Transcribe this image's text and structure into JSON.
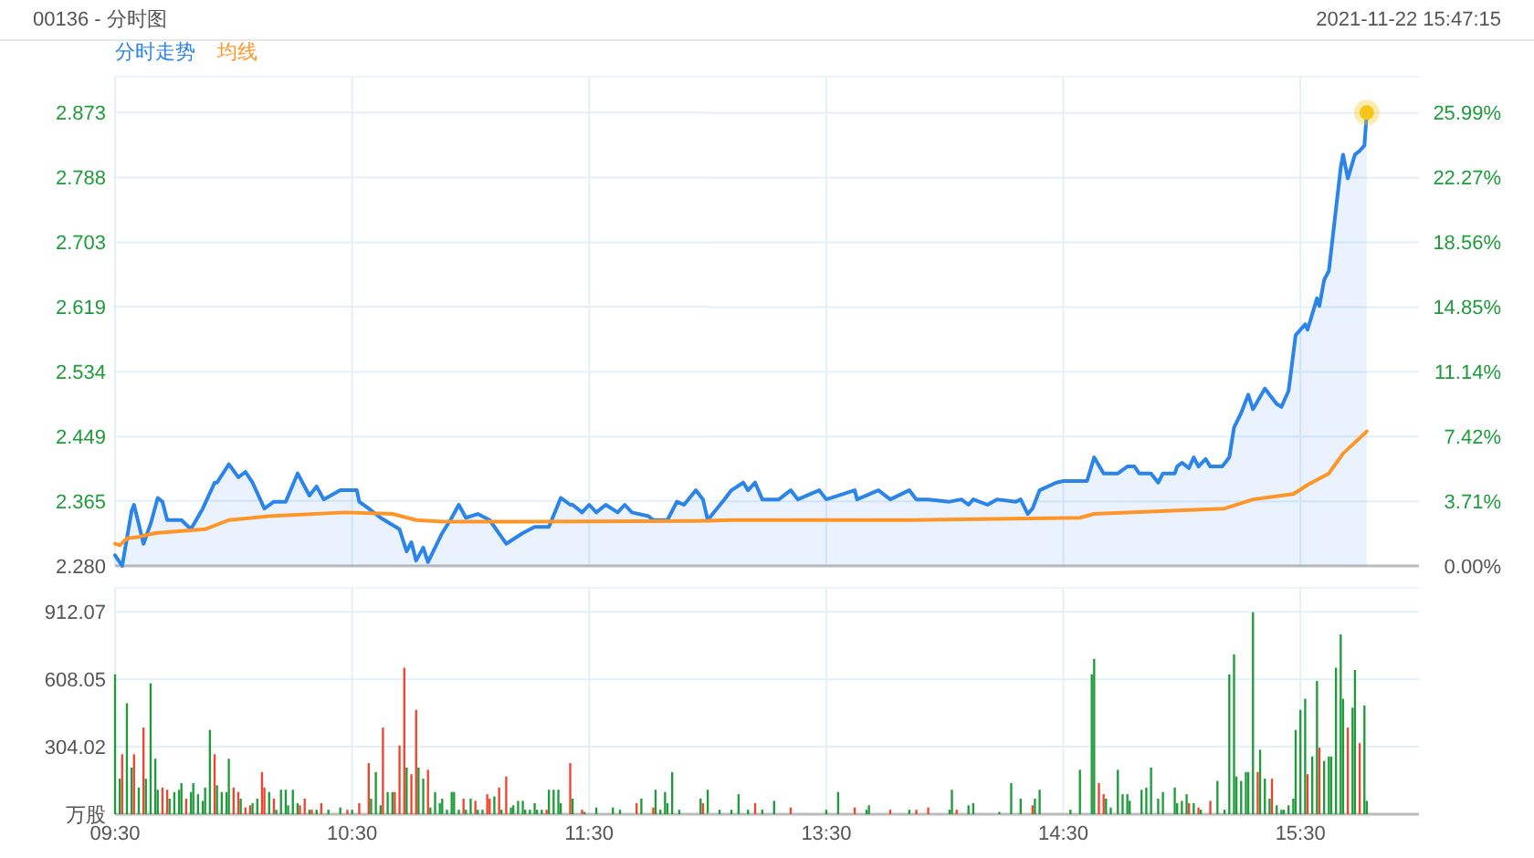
{
  "chart_data": [
    {
      "type": "line",
      "title": "00136 - 分时图",
      "legend": "top left",
      "grid": true,
      "tick_labels": "y",
      "xlim": [
        9.5,
        12
      ],
      "xticks": [
        {
          "value": 9.5,
          "label": null
        },
        {
          "value": 10.5,
          "label": null
        },
        {
          "value": 11.5,
          "label": null
        }
      ],
      "ylim": [
        2.28,
        2.92
      ],
      "yticks": [
        {
          "value": 2.28,
          "label": "2.280"
        },
        2.365,
        2.449,
        2.534,
        2.619,
        2.703,
        2.788,
        2.873
      ],
      "series": [
        {
          "name": "分时走势",
          "type": "area",
          "color": "#2b84ea",
          "x": [
            9.5,
            9.53,
            9.57,
            9.58,
            9.6,
            9.62,
            9.65,
            9.68,
            9.7,
            9.72,
            9.78,
            9.82,
            9.87,
            9.92,
            9.93,
            9.98,
            10.02,
            10.05,
            10.08,
            10.13,
            10.17,
            10.22,
            10.27,
            10.32,
            10.35,
            10.38,
            10.45,
            10.52,
            10.53,
            10.57,
            10.62,
            10.7,
            10.73,
            10.75,
            10.77,
            10.8,
            10.82,
            10.85,
            10.88,
            10.92,
            10.95,
            10.98,
            11.03,
            11.08,
            11.15,
            11.22,
            11.27,
            11.33,
            11.38,
            11.42,
            11.43,
            11.47,
            11.5,
            11.53,
            11.57,
            11.62,
            11.65,
            11.68,
            11.75,
            11.77,
            11.83,
            11.87,
            11.9,
            11.95,
            11.98,
            12
          ],
          "values": [
            2.294,
            2.28,
            2.352,
            2.36,
            2.335,
            2.309,
            2.335,
            2.369,
            2.364,
            2.34,
            2.34,
            2.328,
            2.355,
            2.389,
            2.389,
            2.413,
            2.396,
            2.403,
            2.389,
            2.355,
            2.364,
            2.364,
            2.401,
            2.372,
            2.384,
            2.367,
            2.379,
            2.379,
            2.364,
            2.355,
            2.343,
            2.328,
            2.299,
            2.311,
            2.287,
            2.304,
            2.285,
            2.304,
            2.323,
            2.343,
            2.36,
            2.343,
            2.348,
            2.34,
            2.309,
            2.323,
            2.331,
            2.331,
            2.369,
            2.36,
            2.36,
            2.35,
            2.36,
            2.35,
            2.36,
            2.35,
            2.36,
            2.35,
            2.345,
            2.34,
            2.34,
            2.364,
            2.36,
            2.379,
            2.367,
            2.34
          ]
        },
        {
          "name": "均线",
          "color": "#ff9526",
          "x": [
            9.5,
            9.52,
            9.55,
            9.6,
            9.67,
            9.88,
            9.98,
            10.15,
            10.47,
            10.67,
            10.77,
            10.88,
            11.23,
            12
          ],
          "values": [
            2.309,
            2.307,
            2.316,
            2.318,
            2.323,
            2.328,
            2.34,
            2.345,
            2.35,
            2.348,
            2.34,
            2.338,
            2.338,
            2.339
          ]
        }
      ]
    },
    {
      "type": "line",
      "annotations": [
        "2021-11-22 15:47:15"
      ],
      "grid": true,
      "tick_labels": "y",
      "xlim": [
        13,
        16
      ],
      "xticks": [
        {
          "value": 13.5,
          "label": null
        },
        {
          "value": 14.5,
          "label": null
        },
        {
          "value": 15.5,
          "label": null
        }
      ],
      "ylim": [
        2.28,
        2.92
      ],
      "y2lim": [
        0,
        28.07
      ],
      "y2ticks": [
        {
          "value": 0,
          "label": "0.00%"
        },
        {
          "value": 3.71,
          "label": "3.71%"
        },
        {
          "value": 7.42,
          "label": "7.42%"
        },
        {
          "value": 11.14,
          "label": "11.14%"
        },
        {
          "value": 14.85,
          "label": "14.85%"
        },
        {
          "value": 18.56,
          "label": "18.56%"
        },
        {
          "value": 22.27,
          "label": "22.27%"
        },
        {
          "value": 25.99,
          "label": "25.99%"
        }
      ],
      "series": [
        {
          "type": "area",
          "color": "#2b84ea",
          "x": [
            13,
            13.07,
            13.1,
            13.15,
            13.17,
            13.2,
            13.23,
            13.3,
            13.35,
            13.38,
            13.47,
            13.5,
            13.62,
            13.63,
            13.72,
            13.77,
            13.85,
            13.88,
            13.93,
            14.02,
            14.07,
            14.1,
            14.12,
            14.18,
            14.22,
            14.3,
            14.32,
            14.35,
            14.37,
            14.4,
            14.47,
            14.5,
            14.6,
            14.63,
            14.67,
            14.73,
            14.77,
            14.8,
            14.82,
            14.87,
            14.9,
            14.92,
            14.97,
            14.98,
            15,
            15.03,
            15.05,
            15.07,
            15.1,
            15.12,
            15.17,
            15.2,
            15.22,
            15.25,
            15.28,
            15.3,
            15.35,
            15.4,
            15.42,
            15.45,
            15.48,
            15.52,
            15.53,
            15.57,
            15.58,
            15.6,
            15.62,
            15.67,
            15.68,
            15.7,
            15.73,
            15.75,
            15.77,
            15.78
          ],
          "values": [
            2.34,
            2.367,
            2.379,
            2.389,
            2.379,
            2.389,
            2.367,
            2.367,
            2.379,
            2.367,
            2.379,
            2.367,
            2.379,
            2.367,
            2.379,
            2.367,
            2.379,
            2.367,
            2.367,
            2.364,
            2.367,
            2.36,
            2.367,
            2.36,
            2.367,
            2.364,
            2.367,
            2.348,
            2.355,
            2.379,
            2.389,
            2.391,
            2.391,
            2.422,
            2.401,
            2.401,
            2.41,
            2.41,
            2.401,
            2.401,
            2.389,
            2.401,
            2.401,
            2.41,
            2.415,
            2.408,
            2.422,
            2.41,
            2.42,
            2.41,
            2.41,
            2.422,
            2.461,
            2.48,
            2.504,
            2.485,
            2.512,
            2.492,
            2.488,
            2.509,
            2.582,
            2.596,
            2.589,
            2.63,
            2.62,
            2.654,
            2.666,
            2.801,
            2.818,
            2.787,
            2.818,
            2.823,
            2.83,
            2.873
          ]
        },
        {
          "color": "#ff9526",
          "x": [
            13,
            13.1,
            13.87,
            14.57,
            14.63,
            15.18,
            15.3,
            15.47,
            15.53,
            15.62,
            15.68,
            15.78
          ],
          "values": [
            2.339,
            2.34,
            2.34,
            2.343,
            2.348,
            2.355,
            2.367,
            2.374,
            2.386,
            2.401,
            2.427,
            2.456
          ]
        },
        {
          "type": "scatter",
          "color": "#f5c518",
          "x": [
            15.78
          ],
          "values": [
            2.873
          ]
        }
      ]
    },
    {
      "type": "bar",
      "grid": true,
      "xlim": [
        9.5,
        12
      ],
      "xticks": [
        {
          "value": 9.5,
          "label": "09:30"
        },
        {
          "value": 10.5,
          "label": "10:30"
        },
        {
          "value": 11.5,
          "label": "11:30"
        }
      ],
      "ylim": [
        0,
        1020
      ],
      "yticks": [
        {
          "value": 0,
          "label": "万股"
        },
        304.02,
        608.05,
        912.07
      ],
      "series": [
        {
          "x": [
            9.5,
            9.52,
            9.53,
            9.55,
            9.57,
            9.58,
            9.6,
            9.62,
            9.63,
            9.65,
            9.67,
            9.68,
            9.7,
            9.72,
            9.73,
            9.75,
            9.77,
            9.78,
            9.8,
            9.82,
            9.83,
            9.85,
            9.87,
            9.88,
            9.9,
            9.92,
            9.93,
            9.95,
            9.97,
            9.98,
            10,
            10.02,
            10.03,
            10.05,
            10.07,
            10.08,
            10.1,
            10.12,
            10.13,
            10.15,
            10.17,
            10.18,
            10.2,
            10.22,
            10.23,
            10.25,
            10.27,
            10.28,
            10.3,
            10.32,
            10.33,
            10.35,
            10.37,
            10.4,
            10.45,
            10.48,
            10.5,
            10.53,
            10.57,
            10.58,
            10.6,
            10.62,
            10.63,
            10.65,
            10.67,
            10.68,
            10.7,
            10.72,
            10.73,
            10.75,
            10.77,
            10.78,
            10.8,
            10.82,
            10.83,
            10.85,
            10.87,
            10.88,
            10.9,
            10.92,
            10.93,
            10.95,
            10.97,
            10.98,
            11,
            11.02,
            11.03,
            11.05,
            11.07,
            11.08,
            11.1,
            11.12,
            11.13,
            11.15,
            11.17,
            11.18,
            11.2,
            11.22,
            11.23,
            11.25,
            11.27,
            11.28,
            11.3,
            11.32,
            11.33,
            11.35,
            11.37,
            11.38,
            11.42,
            11.43,
            11.47,
            11.48,
            11.53,
            11.6,
            11.63,
            11.7,
            11.72,
            11.77,
            11.78,
            11.8,
            11.82,
            11.83,
            11.85,
            11.88,
            11.97,
            11.98,
            12
          ],
          "values": [
            630,
            160,
            270,
            500,
            210,
            270,
            120,
            390,
            160,
            590,
            250,
            110,
            120,
            110,
            70,
            100,
            110,
            140,
            70,
            100,
            140,
            90,
            60,
            120,
            380,
            270,
            130,
            100,
            100,
            250,
            120,
            100,
            70,
            30,
            40,
            50,
            70,
            190,
            120,
            100,
            70,
            20,
            110,
            110,
            40,
            110,
            50,
            40,
            70,
            20,
            20,
            20,
            50,
            20,
            30,
            20,
            20,
            50,
            230,
            70,
            190,
            40,
            390,
            100,
            100,
            100,
            310,
            660,
            210,
            180,
            470,
            210,
            160,
            200,
            30,
            100,
            50,
            70,
            20,
            100,
            100,
            20,
            70,
            20,
            70,
            60,
            20,
            20,
            90,
            70,
            80,
            120,
            20,
            170,
            30,
            40,
            60,
            60,
            20,
            20,
            50,
            20,
            20,
            20,
            110,
            110,
            110,
            50,
            230,
            70,
            20,
            10,
            30,
            30,
            20,
            50,
            70,
            30,
            110,
            20,
            100,
            50,
            190,
            20,
            70,
            50,
            110
          ],
          "colors": [
            "#1e9c3a",
            "#1e9c3a",
            "#f0442c",
            "#1e9c3a",
            "#1e9c3a",
            "#f0442c",
            "#1e9c3a",
            "#f0442c",
            "#1e9c3a",
            "#1e9c3a",
            "#1e9c3a",
            "#1e9c3a",
            "#f0442c",
            "#f0442c",
            "#1e9c3a",
            "#1e9c3a",
            "#1e9c3a",
            "#1e9c3a",
            "#f0442c",
            "#1e9c3a",
            "#1e9c3a",
            "#1e9c3a",
            "#1e9c3a",
            "#1e9c3a",
            "#1e9c3a",
            "#f0442c",
            "#1e9c3a",
            "#1e9c3a",
            "#1e9c3a",
            "#1e9c3a",
            "#f0442c",
            "#f0442c",
            "#1e9c3a",
            "#f0442c",
            "#f0442c",
            "#1e9c3a",
            "#1e9c3a",
            "#f0442c",
            "#f0442c",
            "#1e9c3a",
            "#f0442c",
            "#1e9c3a",
            "#1e9c3a",
            "#1e9c3a",
            "#1e9c3a",
            "#1e9c3a",
            "#1e9c3a",
            "#f0442c",
            "#f0442c",
            "#1e9c3a",
            "#f0442c",
            "#1e9c3a",
            "#f0442c",
            "#1e9c3a",
            "#1e9c3a",
            "#f0442c",
            "#1e9c3a",
            "#f0442c",
            "#f0442c",
            "#1e9c3a",
            "#1e9c3a",
            "#1e9c3a",
            "#f0442c",
            "#1e9c3a",
            "#1e9c3a",
            "#f0442c",
            "#f0442c",
            "#f0442c",
            "#1e9c3a",
            "#f0442c",
            "#f0442c",
            "#1e9c3a",
            "#1e9c3a",
            "#f0442c",
            "#1e9c3a",
            "#1e9c3a",
            "#1e9c3a",
            "#1e9c3a",
            "#1e9c3a",
            "#1e9c3a",
            "#1e9c3a",
            "#1e9c3a",
            "#f0442c",
            "#1e9c3a",
            "#1e9c3a",
            "#f0442c",
            "#1e9c3a",
            "#1e9c3a",
            "#f0442c",
            "#f0442c",
            "#1e9c3a",
            "#f0442c",
            "#1e9c3a",
            "#f0442c",
            "#1e9c3a",
            "#1e9c3a",
            "#1e9c3a",
            "#1e9c3a",
            "#1e9c3a",
            "#1e9c3a",
            "#1e9c3a",
            "#1e9c3a",
            "#1e9c3a",
            "#f0442c",
            "#1e9c3a",
            "#1e9c3a",
            "#1e9c3a",
            "#1e9c3a",
            "#f0442c",
            "#1e9c3a",
            "#f0442c",
            "#1e9c3a",
            "#1e9c3a",
            "#1e9c3a",
            "#1e9c3a",
            "#f0442c",
            "#1e9c3a",
            "#f0442c",
            "#1e9c3a",
            "#1e9c3a",
            "#1e9c3a",
            "#1e9c3a",
            "#1e9c3a",
            "#1e9c3a",
            "#1e9c3a",
            "#f0442c",
            "#1e9c3a"
          ]
        }
      ]
    },
    {
      "type": "bar",
      "grid": true,
      "tick_labels": "x",
      "xlim": [
        13,
        16
      ],
      "xticks": [
        {
          "value": 13.5,
          "label": "13:30"
        },
        {
          "value": 14.5,
          "label": "14:30"
        },
        {
          "value": 15.5,
          "label": "15:30"
        }
      ],
      "ylim": [
        0,
        1020
      ],
      "yticks": [
        {
          "value": 0,
          "label": null
        },
        {
          "value": 304.02,
          "label": null
        },
        {
          "value": 608.05,
          "label": null
        },
        {
          "value": 912.07,
          "label": null
        }
      ],
      "series": [
        {
          "x": [
            13.05,
            13.1,
            13.13,
            13.17,
            13.2,
            13.23,
            13.28,
            13.35,
            13.5,
            13.55,
            13.62,
            13.67,
            13.68,
            13.77,
            13.85,
            13.88,
            13.93,
            14.02,
            14.03,
            14.05,
            14.1,
            14.12,
            14.23,
            14.28,
            14.32,
            14.37,
            14.38,
            14.4,
            14.53,
            14.57,
            14.62,
            14.63,
            14.65,
            14.67,
            14.68,
            14.7,
            14.73,
            14.75,
            14.77,
            14.78,
            14.83,
            14.85,
            14.87,
            14.9,
            14.92,
            14.97,
            14.98,
            15,
            15.02,
            15.03,
            15.05,
            15.07,
            15.08,
            15.12,
            15.15,
            15.18,
            15.2,
            15.22,
            15.23,
            15.25,
            15.27,
            15.28,
            15.3,
            15.32,
            15.33,
            15.35,
            15.37,
            15.38,
            15.4,
            15.42,
            15.43,
            15.45,
            15.47,
            15.48,
            15.5,
            15.52,
            15.53,
            15.55,
            15.57,
            15.58,
            15.6,
            15.62,
            15.63,
            15.65,
            15.67,
            15.68,
            15.7,
            15.72,
            15.73,
            15.75,
            15.77,
            15.78
          ],
          "values": [
            20,
            20,
            90,
            20,
            50,
            20,
            60,
            30,
            20,
            100,
            30,
            20,
            40,
            20,
            20,
            20,
            30,
            20,
            110,
            20,
            40,
            50,
            10,
            140,
            70,
            40,
            70,
            110,
            20,
            200,
            630,
            700,
            140,
            90,
            70,
            30,
            200,
            90,
            90,
            60,
            110,
            120,
            210,
            70,
            100,
            120,
            50,
            60,
            90,
            50,
            50,
            30,
            20,
            60,
            150,
            20,
            630,
            720,
            170,
            150,
            190,
            190,
            910,
            190,
            290,
            160,
            70,
            160,
            40,
            20,
            20,
            40,
            70,
            380,
            470,
            520,
            180,
            260,
            600,
            300,
            240,
            260,
            260,
            660,
            810,
            520,
            390,
            480,
            650,
            320,
            490,
            60
          ],
          "colors": [
            "#1e9c3a",
            "#1e9c3a",
            "#1e9c3a",
            "#1e9c3a",
            "#f0442c",
            "#1e9c3a",
            "#1e9c3a",
            "#f0442c",
            "#1e9c3a",
            "#1e9c3a",
            "#f0442c",
            "#1e9c3a",
            "#1e9c3a",
            "#f0442c",
            "#1e9c3a",
            "#f0442c",
            "#f0442c",
            "#1e9c3a",
            "#1e9c3a",
            "#f0442c",
            "#1e9c3a",
            "#1e9c3a",
            "#1e9c3a",
            "#1e9c3a",
            "#1e9c3a",
            "#f0442c",
            "#1e9c3a",
            "#1e9c3a",
            "#1e9c3a",
            "#1e9c3a",
            "#1e9c3a",
            "#1e9c3a",
            "#f0442c",
            "#f0442c",
            "#1e9c3a",
            "#1e9c3a",
            "#1e9c3a",
            "#1e9c3a",
            "#1e9c3a",
            "#1e9c3a",
            "#1e9c3a",
            "#1e9c3a",
            "#1e9c3a",
            "#1e9c3a",
            "#1e9c3a",
            "#1e9c3a",
            "#1e9c3a",
            "#1e9c3a",
            "#1e9c3a",
            "#f0442c",
            "#1e9c3a",
            "#f0442c",
            "#1e9c3a",
            "#f0442c",
            "#1e9c3a",
            "#1e9c3a",
            "#1e9c3a",
            "#1e9c3a",
            "#1e9c3a",
            "#1e9c3a",
            "#1e9c3a",
            "#1e9c3a",
            "#1e9c3a",
            "#f0442c",
            "#1e9c3a",
            "#1e9c3a",
            "#1e9c3a",
            "#f0442c",
            "#1e9c3a",
            "#1e9c3a",
            "#1e9c3a",
            "#1e9c3a",
            "#1e9c3a",
            "#1e9c3a",
            "#1e9c3a",
            "#1e9c3a",
            "#f0442c",
            "#1e9c3a",
            "#1e9c3a",
            "#f0442c",
            "#1e9c3a",
            "#1e9c3a",
            "#1e9c3a",
            "#1e9c3a",
            "#1e9c3a",
            "#1e9c3a",
            "#f0442c",
            "#1e9c3a",
            "#1e9c3a",
            "#f0442c",
            "#1e9c3a",
            "#1e9c3a"
          ]
        }
      ]
    }
  ]
}
